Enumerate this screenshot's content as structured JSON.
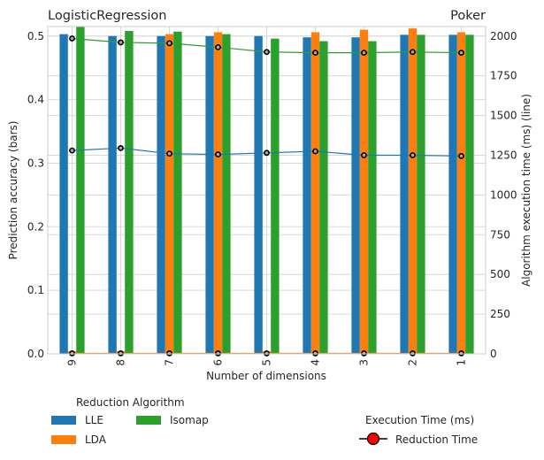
{
  "chart_data": {
    "type": "bar",
    "title_left": "LogisticRegression",
    "title_right": "Poker",
    "xlabel": "Number of dimensions",
    "ylabel_left": "Prediction accuracy (bars)",
    "ylabel_right": "Algorithm execution time (ms) (line)",
    "categories": [
      "9",
      "8",
      "7",
      "6",
      "5",
      "4",
      "3",
      "2",
      "1"
    ],
    "ylim_left": [
      0,
      0.515
    ],
    "yticks_left": [
      "0.0",
      "0.1",
      "0.2",
      "0.3",
      "0.4",
      "0.5"
    ],
    "ylim_right": [
      0,
      2060
    ],
    "yticks_right": [
      "0",
      "250",
      "500",
      "750",
      "1000",
      "1250",
      "1500",
      "1750",
      "2000"
    ],
    "grid": true,
    "series": [
      {
        "name": "LLE",
        "color": "#1f77b4",
        "values": [
          0.503,
          0.5,
          0.5,
          0.5,
          0.5,
          0.498,
          0.498,
          0.502,
          0.502
        ]
      },
      {
        "name": "LDA",
        "color": "#ff7f0e",
        "values": [
          0.004,
          0.004,
          0.503,
          0.506,
          0.004,
          0.506,
          0.51,
          0.512,
          0.506
        ]
      },
      {
        "name": "Isomap",
        "color": "#2ca02c",
        "values": [
          0.515,
          0.508,
          0.507,
          0.503,
          0.496,
          0.492,
          0.492,
          0.502,
          0.502
        ]
      }
    ],
    "lines": [
      {
        "series": "LLE",
        "color": "#1f77b4",
        "values": [
          1280,
          1295,
          1260,
          1255,
          1265,
          1275,
          1250,
          1250,
          1245
        ]
      },
      {
        "series": "LDA",
        "color": "#ff7f0e",
        "values": [
          3,
          3,
          3,
          3,
          3,
          3,
          3,
          3,
          3
        ]
      },
      {
        "series": "Isomap",
        "color": "#2ca02c",
        "values": [
          1985,
          1960,
          1955,
          1930,
          1900,
          1895,
          1895,
          1900,
          1895
        ]
      }
    ],
    "legend_algorithms": {
      "title": "Reduction Algorithm",
      "entries": [
        "LLE",
        "LDA",
        "Isomap"
      ]
    },
    "legend_time": {
      "title": "Execution Time (ms)",
      "entry": "Reduction Time",
      "marker_color": "#ff0000"
    }
  }
}
